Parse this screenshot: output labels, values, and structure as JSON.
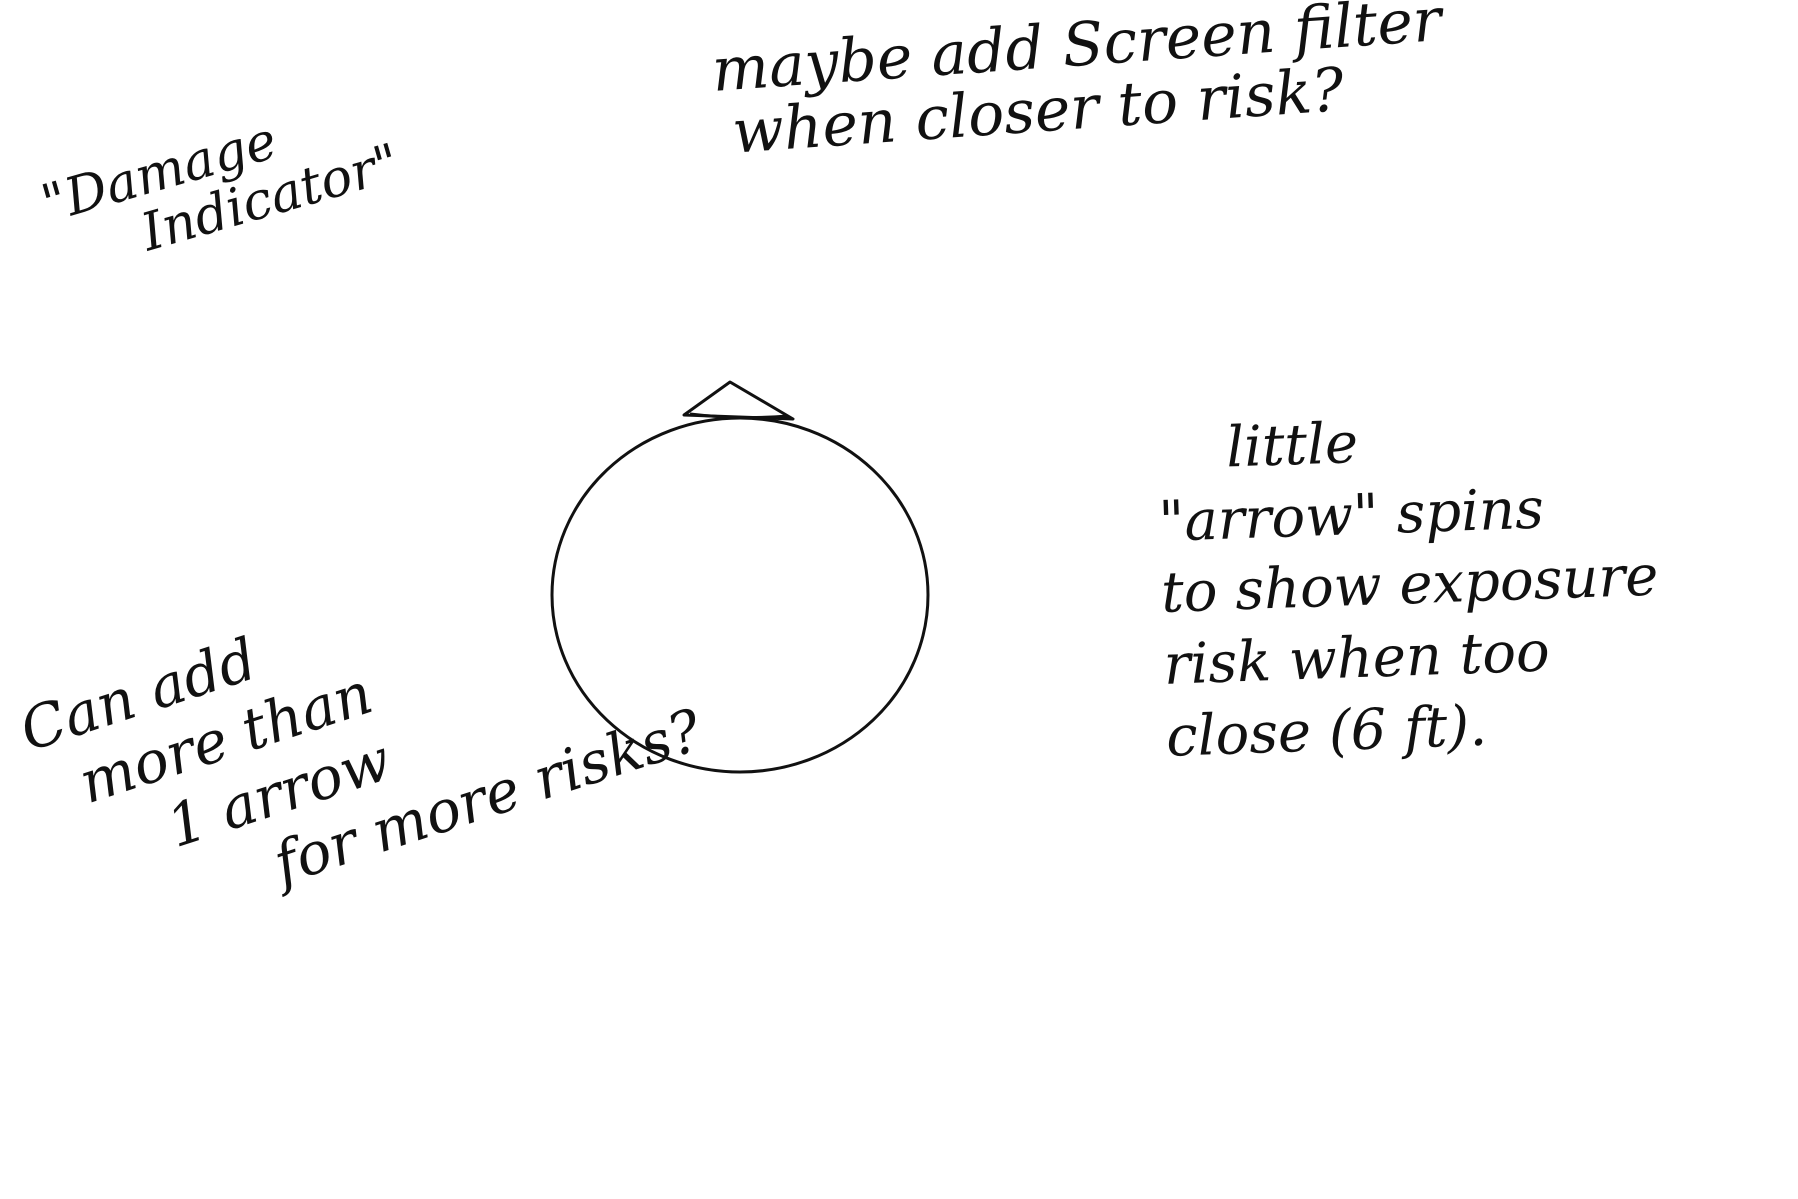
{
  "notes": {
    "damage_indicator": {
      "lines": [
        "\"Damage",
        "Indicator\""
      ]
    },
    "screen_filter": {
      "lines": [
        "maybe add Screen filter",
        "when closer to risk?"
      ]
    },
    "arrow_spins": {
      "lines": [
        "little",
        "\"arrow\" spins",
        "to show exposure",
        "risk when too",
        "close (6 ft)."
      ]
    },
    "more_arrows": {
      "lines": [
        "Can add",
        "more than",
        "1 arrow",
        "for more risks?"
      ]
    }
  },
  "colors": {
    "ink": "#111111",
    "paper": "#ffffff"
  }
}
